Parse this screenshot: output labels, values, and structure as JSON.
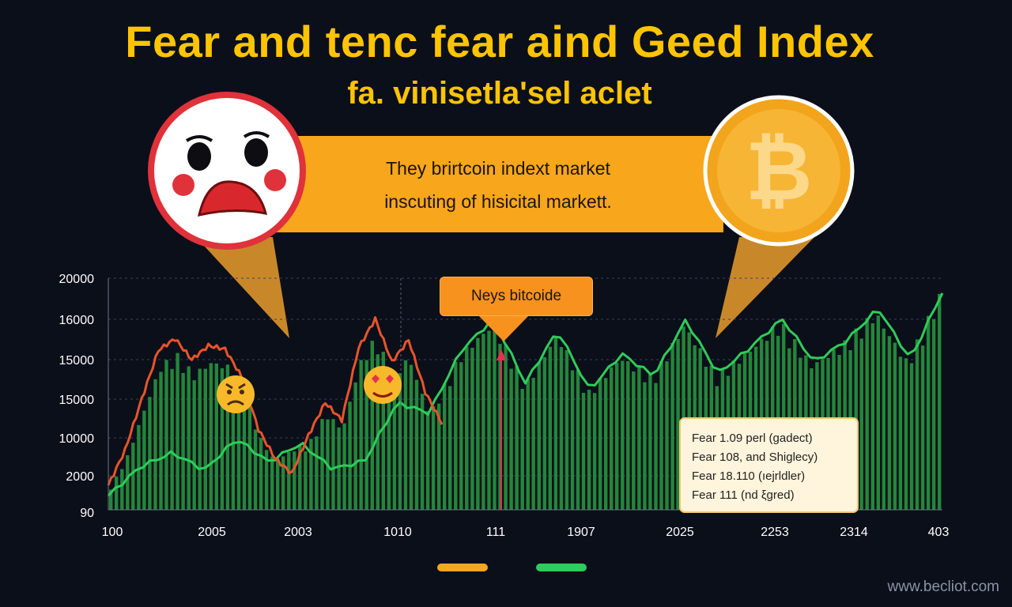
{
  "header": {
    "title": "Fear and tenc fear aind Geed Index",
    "subtitle": "fa. vinisetla'sel aclet"
  },
  "banner": {
    "line1": "They brirtcoin indext market",
    "line2": "inscuting of hisicital markett."
  },
  "callout": {
    "label": "Neys bitcoide"
  },
  "legend_box": {
    "lines": [
      "Fear 1.09 perl (gadect)",
      "Fear 108, and Shiglecy)",
      "Fear 18.110 (ıejrldler)",
      "Fear 111 (nd ξgred)"
    ]
  },
  "watermark": "www.becliot.com",
  "icons": {
    "fear": "fear-face-icon",
    "bitcoin": "bitcoin-coin-icon",
    "frustrated": "frustrated-emoji-icon",
    "heart_eyes": "heart-eyes-emoji-icon"
  },
  "colors": {
    "title": "#ffc400",
    "banner": "#f8a61c",
    "fear_series": "#e8542a",
    "greed_series": "#2ecc5a",
    "bars": "#2a8f3a",
    "marker": "#e53150"
  },
  "chart_data": {
    "type": "line",
    "y_tick_labels": [
      "20000",
      "16000",
      "15000",
      "15000",
      "10000",
      "2000",
      "90"
    ],
    "x_tick_labels": [
      "100",
      "2005",
      "2003",
      "1010",
      "111",
      "1907",
      "2025",
      "2253",
      "2314",
      "403"
    ],
    "ylim": [
      90,
      20000
    ],
    "grid": true,
    "series": [
      {
        "color": "#e8542a",
        "values": [
          2200,
          5200,
          9600,
          13800,
          14800,
          13000,
          14200,
          13900,
          11500,
          7000,
          4500,
          3200,
          6500,
          9300,
          7800,
          14000,
          16500,
          12800,
          14700,
          10200,
          7500
        ]
      },
      {
        "color": "#2ecc5a",
        "values": [
          1300,
          3800,
          5000,
          3500,
          6200,
          4200,
          5800,
          3600,
          4300,
          9300,
          8400,
          13800,
          16500,
          11000,
          15500,
          10400,
          13500,
          11600,
          16400,
          11800,
          14000,
          16500,
          12800,
          14600,
          17400,
          13000,
          18800
        ]
      }
    ],
    "legend_swatches": [
      "#f5a623",
      "#2ecc5a"
    ]
  }
}
